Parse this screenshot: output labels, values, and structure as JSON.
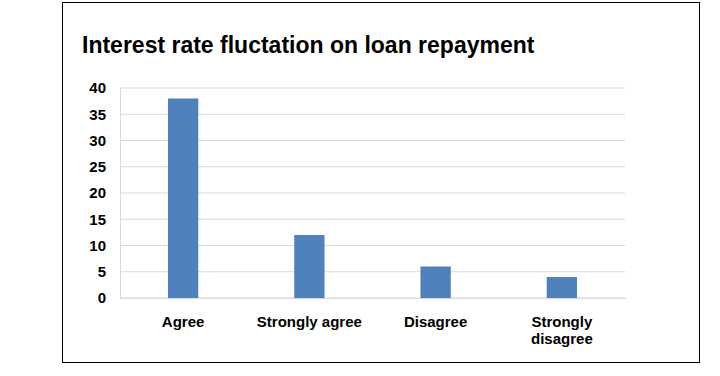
{
  "chart_data": {
    "type": "bar",
    "title": "Interest rate fluctation on loan repayment",
    "categories": [
      "Agree",
      "Strongly agree",
      "Disagree",
      "Strongly disagree"
    ],
    "values": [
      38,
      12,
      6,
      4
    ],
    "color": "#4f81bd",
    "ylim": [
      0,
      40
    ],
    "yticks": [
      0,
      5,
      10,
      15,
      20,
      25,
      30,
      35,
      40
    ],
    "grid": true
  }
}
